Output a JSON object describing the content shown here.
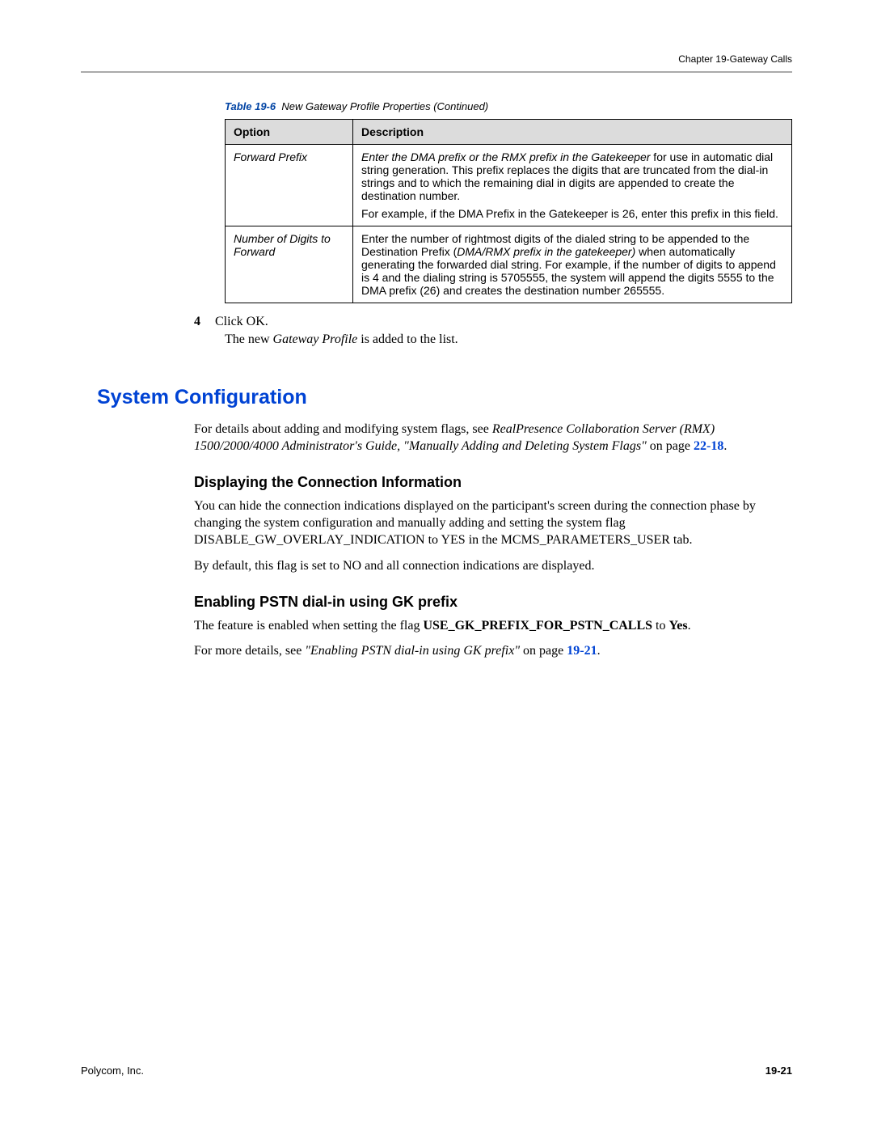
{
  "header": {
    "chapter": "Chapter 19-Gateway Calls"
  },
  "table": {
    "caption_number": "Table 19-6",
    "caption_text": "New Gateway Profile Properties (Continued)",
    "columns": [
      "Option",
      "Description"
    ],
    "rows": [
      {
        "option": "Forward Prefix",
        "desc_it1": "Enter the DMA prefix or the RMX prefix in the Gatekeeper",
        "desc_p1_tail": " for use in automatic dial string generation. This prefix replaces the digits that are truncated from the dial-in strings and to which the remaining dial in digits are appended to create the destination number.",
        "desc_p2": "For example, if the DMA Prefix in the Gatekeeper is 26, enter this prefix in this field."
      },
      {
        "option": "Number of Digits to Forward",
        "desc_p1_head": "Enter the number of rightmost digits of the dialed string to be appended to the Destination Prefix (",
        "desc_it2": "DMA/RMX prefix in the gatekeeper)",
        "desc_p1_tail2": " when automatically generating the forwarded dial string. For example, if the number of digits to append is 4 and the dialing string is 5705555, the system will append the digits 5555 to the DMA prefix (26) and creates the destination number 265555."
      }
    ]
  },
  "step": {
    "num": "4",
    "text": "Click OK.",
    "sub_pre": "The new ",
    "sub_it": "Gateway Profile",
    "sub_post": " is added to the list."
  },
  "section_title": "System Configuration",
  "syscfg": {
    "p1_pre": "For details about adding and modifying system flags, see ",
    "p1_it1": "RealPresence Collaboration Server (RMX) 1500/2000/4000 Administrator's Guide",
    "p1_mid": ", ",
    "p1_it2": "\"Manually Adding and Deleting System Flags\"",
    "p1_post": " on page ",
    "p1_link": "22-18",
    "p1_end": "."
  },
  "sub1": {
    "title": "Displaying the Connection Information",
    "p1": "You can hide the connection indications displayed on the participant's screen during the connection phase by changing the system configuration and manually adding and setting the system flag DISABLE_GW_OVERLAY_INDICATION to YES in the MCMS_PARAMETERS_USER tab.",
    "p2": "By default, this flag is set to NO and all connection indications are displayed."
  },
  "sub2": {
    "title": "Enabling PSTN dial-in using GK prefix",
    "p1_pre": "The feature is enabled when setting the flag ",
    "p1_bold": "USE_GK_PREFIX_FOR_PSTN_CALLS",
    "p1_mid": " to ",
    "p1_bold2": "Yes",
    "p1_end": ".",
    "p2_pre": "For more details, see ",
    "p2_it": "\"Enabling PSTN dial-in using GK prefix\"",
    "p2_post": " on page ",
    "p2_link": "19-21",
    "p2_end": "."
  },
  "footer": {
    "company": "Polycom, Inc.",
    "page": "19-21"
  }
}
